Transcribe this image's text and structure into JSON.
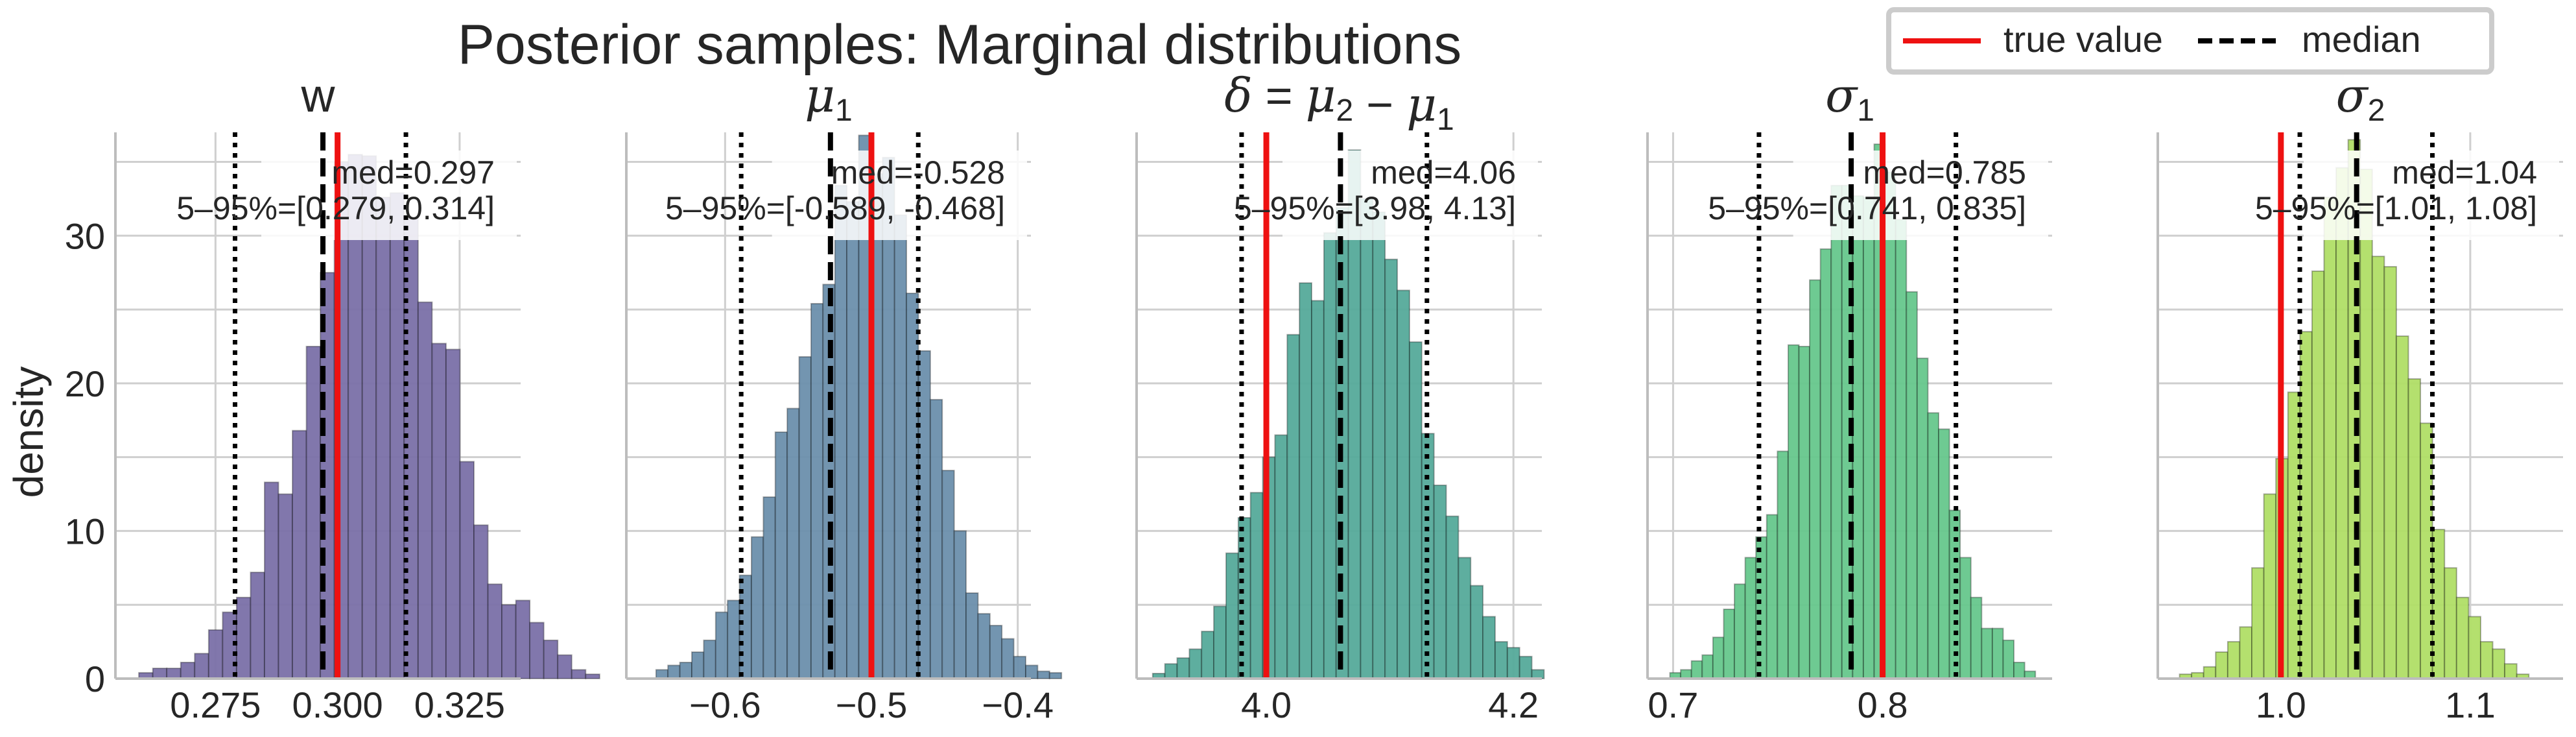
{
  "figure": {
    "title": "Posterior samples: Marginal distributions",
    "ylabel": "density",
    "legend": {
      "placement": "top-right",
      "entries": [
        {
          "label": "true value",
          "color": "#ee1111",
          "style": "solid"
        },
        {
          "label": "median",
          "color": "#000000",
          "style": "dashed"
        }
      ]
    }
  },
  "chart_data": [
    {
      "type": "histogram",
      "title": "w",
      "title_parts": [
        {
          "t": "w",
          "math": false
        }
      ],
      "color": "#7a70a8",
      "bins": {
        "start": 0.2593,
        "width": 0.00286,
        "values": [
          0.4,
          0.7,
          0.7,
          1.1,
          1.7,
          3.3,
          4.5,
          5.5,
          7.2,
          13.3,
          12.5,
          16.8,
          22.5,
          27.5,
          35.0,
          35.5,
          35.4,
          32.6,
          32.9,
          31.2,
          25.5,
          22.7,
          22.3,
          14.7,
          10.4,
          6.4,
          5.0,
          5.3,
          3.8,
          2.6,
          1.6,
          0.6,
          0.3
        ]
      },
      "true_value": 0.3,
      "median": 0.297,
      "q05": 0.279,
      "q95": 0.314,
      "annotation": {
        "med": "med=0.297",
        "ci": "5–95%=[0.279, 0.314]"
      },
      "xlim": [
        0.2545,
        0.3375
      ],
      "ylim": [
        0,
        37
      ],
      "xticks": [
        0.275,
        0.3,
        0.325
      ],
      "xticklabels": [
        "0.275",
        "0.300",
        "0.325"
      ],
      "yticks": [
        0,
        10,
        20,
        30
      ],
      "yticklabels": [
        "0",
        "10",
        "20",
        "30"
      ]
    },
    {
      "type": "histogram",
      "title": "μ1",
      "title_parts": [
        {
          "t": "μ",
          "math": true
        },
        {
          "t": "1",
          "math": false,
          "sub": true
        }
      ],
      "color": "#6c8fac",
      "bins": {
        "start": -0.6472,
        "width": 0.00815,
        "values": [
          0.6,
          0.9,
          1.1,
          1.8,
          2.6,
          4.5,
          5.3,
          7.0,
          9.6,
          12.3,
          16.7,
          18.3,
          21.8,
          25.4,
          26.7,
          33.4,
          32.3,
          36.8,
          34.2,
          35.3,
          31.4,
          26.1,
          22.2,
          18.9,
          14.1,
          10.0,
          5.8,
          4.4,
          3.6,
          2.7,
          1.5,
          0.9,
          0.5,
          0.4
        ]
      },
      "true_value": -0.5,
      "median": -0.528,
      "q05": -0.589,
      "q95": -0.468,
      "annotation": {
        "med": "med=-0.528",
        "ci": "5–95%=[-0.589, -0.468]"
      },
      "xlim": [
        -0.6675,
        -0.391
      ],
      "ylim": [
        0,
        37
      ],
      "xticks": [
        -0.6,
        -0.5,
        -0.4
      ],
      "xticklabels": [
        "−0.6",
        "−0.5",
        "−0.4"
      ],
      "yticks": [],
      "yticklabels": []
    },
    {
      "type": "histogram",
      "title": "δ = μ2 − μ1",
      "title_parts": [
        {
          "t": "δ",
          "math": true
        },
        {
          "t": " = ",
          "math": false
        },
        {
          "t": "μ",
          "math": true
        },
        {
          "t": "2",
          "math": false,
          "sub": true
        },
        {
          "t": " − ",
          "math": false
        },
        {
          "t": "μ",
          "math": true
        },
        {
          "t": "1",
          "math": false,
          "sub": true
        }
      ],
      "color": "#55aa9a",
      "bins": {
        "start": 3.908,
        "width": 0.0099,
        "values": [
          0.35,
          1.0,
          1.4,
          2.0,
          3.2,
          4.9,
          8.5,
          10.9,
          12.6,
          15.0,
          16.5,
          23.3,
          26.8,
          25.6,
          30.2,
          31.9,
          35.8,
          32.5,
          31.6,
          28.4,
          26.3,
          22.8,
          16.6,
          13.1,
          11.0,
          8.2,
          6.3,
          4.2,
          2.5,
          2.1,
          1.5,
          0.6
        ]
      },
      "true_value": 4.0,
      "median": 4.06,
      "q05": 3.98,
      "q95": 4.13,
      "annotation": {
        "med": "med=4.06",
        "ci": "5–95%=[3.98, 4.13]"
      },
      "xlim": [
        3.895,
        4.223
      ],
      "ylim": [
        0,
        37
      ],
      "xticks": [
        4.0,
        4.2
      ],
      "xticklabels": [
        "4.0",
        "4.2"
      ],
      "yticks": [],
      "yticklabels": []
    },
    {
      "type": "histogram",
      "title": "σ1",
      "title_parts": [
        {
          "t": "σ",
          "math": true
        },
        {
          "t": "1",
          "math": false,
          "sub": true
        }
      ],
      "color": "#66c78c",
      "bins": {
        "start": 0.6985,
        "width": 0.00513,
        "values": [
          0.4,
          0.6,
          1.2,
          1.6,
          2.8,
          4.7,
          6.4,
          8.2,
          9.6,
          11.1,
          15.4,
          22.6,
          22.5,
          27.0,
          29.1,
          33.4,
          33.4,
          32.7,
          32.6,
          36.2,
          34.3,
          31.1,
          26.2,
          21.7,
          18.0,
          16.9,
          11.4,
          8.2,
          5.5,
          3.4,
          3.4,
          2.6,
          1.1,
          0.5
        ]
      },
      "true_value": 0.8,
      "median": 0.785,
      "q05": 0.741,
      "q95": 0.835,
      "annotation": {
        "med": "med=0.785",
        "ci": "5–95%=[0.741, 0.835]"
      },
      "xlim": [
        0.6878,
        0.8809
      ],
      "ylim": [
        0,
        37
      ],
      "xticks": [
        0.7,
        0.8
      ],
      "xticklabels": [
        "0.7",
        "0.8"
      ],
      "yticks": [],
      "yticklabels": []
    },
    {
      "type": "histogram",
      "title": "σ2",
      "title_parts": [
        {
          "t": "σ",
          "math": true
        },
        {
          "t": "2",
          "math": false,
          "sub": true
        }
      ],
      "color": "#b0de66",
      "bins": {
        "start": 0.9465,
        "width": 0.00636,
        "values": [
          0.3,
          0.4,
          0.8,
          1.8,
          2.5,
          3.5,
          7.5,
          12.5,
          14.9,
          19.4,
          23.5,
          27.6,
          32.6,
          34.6,
          36.5,
          34.5,
          28.6,
          27.9,
          23.2,
          20.3,
          17.3,
          10.1,
          7.5,
          5.5,
          4.2,
          2.5,
          2.0,
          1.0,
          0.3
        ]
      },
      "true_value": 1.0,
      "median": 1.04,
      "q05": 1.01,
      "q95": 1.08,
      "annotation": {
        "med": "med=1.04",
        "ci": "5–95%=[1.01, 1.08]"
      },
      "xlim": [
        0.935,
        1.149
      ],
      "ylim": [
        0,
        37
      ],
      "xticks": [
        1.0,
        1.1
      ],
      "xticklabels": [
        "1.0",
        "1.1"
      ],
      "yticks": [],
      "yticklabels": []
    }
  ]
}
